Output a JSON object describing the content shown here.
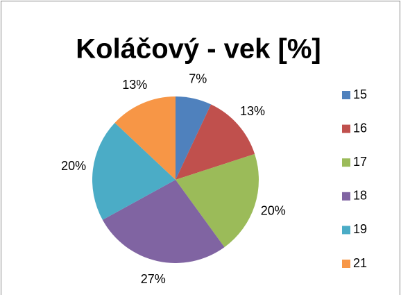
{
  "chart_data": {
    "type": "pie",
    "title": "Koláčový - vek [%]",
    "categories": [
      "15",
      "16",
      "17",
      "18",
      "19",
      "21"
    ],
    "values": [
      7,
      13,
      20,
      27,
      20,
      13
    ],
    "value_labels": [
      "7%",
      "13%",
      "20%",
      "27%",
      "20%",
      "13%"
    ],
    "colors": [
      "#4f81bd",
      "#c0504d",
      "#9bbb59",
      "#8064a2",
      "#4bacc6",
      "#f79646"
    ],
    "legend": "right"
  }
}
